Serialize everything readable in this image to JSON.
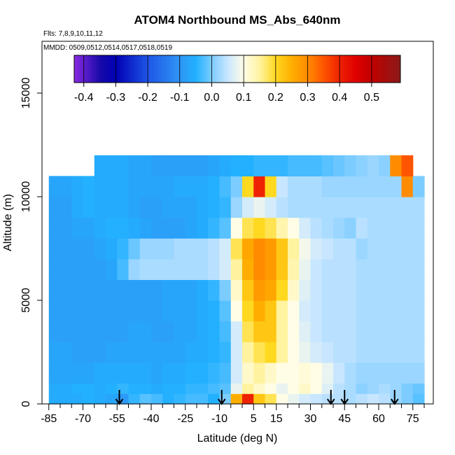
{
  "chart_data": {
    "type": "heatmap",
    "title": "ATOM4 Northbound MS_Abs_640nm",
    "flights_label": "Flts: 7,8,9,10,11,12",
    "dates_label": "MMDD: 0509,0512,0514,0517,0518,0519",
    "xlabel": "Latitude (deg N)",
    "ylabel": "Altitude (m)",
    "xlim": [
      -88,
      84
    ],
    "ylim": [
      0,
      17500
    ],
    "x_ticks": [
      -85,
      -70,
      -55,
      -40,
      -25,
      -10,
      5,
      15,
      30,
      45,
      60,
      75
    ],
    "x_minor_ticks": [
      -80,
      -75,
      -65,
      -60,
      -50,
      -45,
      -35,
      -30,
      -20,
      -15,
      -5,
      0,
      10,
      20,
      25,
      35,
      40,
      50,
      55,
      65,
      70,
      80
    ],
    "y_ticks": [
      0,
      5000,
      10000,
      15000
    ],
    "colorbar": {
      "ticks": [
        -0.4,
        -0.3,
        -0.2,
        -0.1,
        0.0,
        0.1,
        0.2,
        0.3,
        0.4,
        0.5
      ],
      "range": [
        -0.43,
        0.59
      ],
      "stops": [
        {
          "v": -0.43,
          "c": "#8a2be2"
        },
        {
          "v": -0.35,
          "c": "#1a0aa8"
        },
        {
          "v": -0.3,
          "c": "#0000b4"
        },
        {
          "v": -0.2,
          "c": "#1e55e6"
        },
        {
          "v": -0.1,
          "c": "#2f95f5"
        },
        {
          "v": -0.05,
          "c": "#22b0ff"
        },
        {
          "v": 0.0,
          "c": "#7cccff"
        },
        {
          "v": 0.05,
          "c": "#c8e6ff"
        },
        {
          "v": 0.1,
          "c": "#fffde6"
        },
        {
          "v": 0.15,
          "c": "#fff3a0"
        },
        {
          "v": 0.2,
          "c": "#ffd820"
        },
        {
          "v": 0.25,
          "c": "#ffae00"
        },
        {
          "v": 0.3,
          "c": "#ff8c00"
        },
        {
          "v": 0.35,
          "c": "#ff5500"
        },
        {
          "v": 0.4,
          "c": "#ee2200"
        },
        {
          "v": 0.45,
          "c": "#e00000"
        },
        {
          "v": 0.5,
          "c": "#c00000"
        },
        {
          "v": 0.59,
          "c": "#8b1a1a"
        }
      ]
    },
    "lat_edges": [
      -85,
      -80,
      -75,
      -70,
      -65,
      -60,
      -55,
      -50,
      -45,
      -40,
      -35,
      -30,
      -25,
      -20,
      -15,
      -10,
      -5,
      0,
      5,
      10,
      15,
      20,
      25,
      30,
      35,
      40,
      45,
      50,
      55,
      60,
      65,
      70,
      75,
      80
    ],
    "alt_edges": [
      0,
      500,
      1000,
      2000,
      3000,
      4000,
      5000,
      6000,
      7000,
      8000,
      9000,
      10000,
      11000,
      12000
    ],
    "values": [
      [
        -0.06,
        -0.06,
        -0.06,
        -0.05,
        -0.06,
        -0.07,
        -0.09,
        -0.04,
        -0.02,
        -0.03,
        -0.05,
        -0.04,
        -0.03,
        -0.03,
        -0.05,
        0.0,
        0.25,
        0.4,
        0.22,
        0.18,
        0.1,
        0.08,
        0.06,
        0.05,
        0.04,
        0.04,
        0.03,
        0.04,
        0.05,
        0.04,
        0.02,
        0.0,
        -0.02
      ],
      [
        -0.06,
        -0.06,
        -0.05,
        -0.05,
        -0.06,
        -0.05,
        -0.04,
        -0.05,
        -0.05,
        -0.06,
        -0.05,
        -0.05,
        -0.04,
        -0.04,
        -0.03,
        -0.02,
        0.08,
        0.15,
        0.12,
        0.1,
        0.08,
        0.1,
        0.12,
        0.1,
        0.07,
        0.04,
        0.03,
        0.01,
        0.02,
        0.03,
        0.02,
        0.0,
        -0.01
      ],
      [
        -0.07,
        -0.07,
        -0.07,
        -0.07,
        -0.06,
        -0.06,
        -0.06,
        -0.06,
        -0.06,
        -0.07,
        -0.06,
        -0.06,
        -0.05,
        -0.05,
        -0.04,
        -0.03,
        0.06,
        0.12,
        0.15,
        0.12,
        0.1,
        0.1,
        0.11,
        0.1,
        0.08,
        0.05,
        0.03,
        0.02,
        0.02,
        0.02,
        0.02,
        0.02,
        0.02
      ],
      [
        -0.07,
        -0.07,
        -0.08,
        -0.08,
        -0.08,
        -0.07,
        -0.07,
        -0.07,
        -0.07,
        -0.07,
        -0.07,
        -0.07,
        -0.06,
        -0.06,
        -0.05,
        -0.04,
        0.06,
        0.15,
        0.18,
        0.2,
        0.15,
        0.1,
        0.08,
        0.06,
        0.05,
        0.04,
        0.04,
        0.03,
        0.03,
        0.03,
        0.03,
        0.03,
        0.03
      ],
      [
        -0.08,
        -0.08,
        -0.08,
        -0.08,
        -0.08,
        -0.08,
        -0.08,
        -0.07,
        -0.07,
        -0.08,
        -0.08,
        -0.07,
        -0.07,
        -0.06,
        -0.05,
        -0.03,
        0.06,
        0.18,
        0.22,
        0.22,
        0.15,
        0.1,
        0.07,
        0.05,
        0.04,
        0.04,
        0.04,
        0.03,
        0.03,
        0.03,
        0.03,
        0.03,
        0.03
      ],
      [
        -0.08,
        -0.08,
        -0.08,
        -0.08,
        -0.08,
        -0.08,
        -0.08,
        -0.08,
        -0.08,
        -0.08,
        -0.07,
        -0.07,
        -0.07,
        -0.06,
        -0.05,
        -0.02,
        0.1,
        0.2,
        0.25,
        0.22,
        0.15,
        0.1,
        0.06,
        0.05,
        0.04,
        0.04,
        0.04,
        0.03,
        0.03,
        0.03,
        0.03,
        0.03,
        0.03
      ],
      [
        -0.08,
        -0.08,
        -0.08,
        -0.08,
        -0.08,
        -0.08,
        -0.08,
        -0.08,
        -0.08,
        -0.08,
        -0.07,
        -0.07,
        -0.07,
        -0.06,
        -0.04,
        0.0,
        0.12,
        0.22,
        0.28,
        0.26,
        0.2,
        0.12,
        0.07,
        0.05,
        0.04,
        0.04,
        0.04,
        0.03,
        0.03,
        0.03,
        0.03,
        0.03,
        0.03
      ],
      [
        -0.08,
        -0.08,
        -0.08,
        -0.08,
        -0.08,
        -0.07,
        -0.03,
        0.02,
        0.03,
        0.03,
        0.03,
        0.03,
        0.03,
        0.03,
        0.04,
        0.06,
        0.15,
        0.25,
        0.3,
        0.28,
        0.22,
        0.14,
        0.08,
        0.05,
        0.04,
        0.04,
        0.04,
        0.03,
        0.03,
        0.03,
        0.03,
        0.03,
        0.03
      ],
      [
        -0.08,
        -0.08,
        -0.08,
        -0.08,
        -0.07,
        -0.06,
        -0.04,
        -0.01,
        0.02,
        0.02,
        0.02,
        0.03,
        0.03,
        0.03,
        0.04,
        0.06,
        0.18,
        0.26,
        0.3,
        0.28,
        0.22,
        0.15,
        0.09,
        0.06,
        0.05,
        0.04,
        0.04,
        0.02,
        0.03,
        0.03,
        0.03,
        0.03,
        0.03
      ],
      [
        -0.08,
        -0.08,
        -0.07,
        -0.07,
        -0.06,
        -0.05,
        -0.05,
        -0.06,
        -0.07,
        -0.08,
        -0.08,
        -0.08,
        -0.07,
        -0.06,
        -0.04,
        -0.02,
        0.1,
        0.18,
        0.2,
        0.18,
        0.14,
        0.1,
        0.06,
        0.04,
        0.03,
        0.02,
        0.01,
        0.04,
        0.03,
        0.03,
        0.03,
        0.03,
        0.03
      ],
      [
        -0.08,
        -0.08,
        -0.06,
        -0.05,
        -0.06,
        -0.06,
        -0.06,
        -0.07,
        -0.08,
        -0.08,
        -0.07,
        -0.07,
        -0.07,
        -0.06,
        -0.05,
        -0.04,
        0.02,
        0.06,
        0.08,
        0.06,
        0.04,
        0.03,
        0.03,
        0.03,
        0.03,
        0.03,
        0.03,
        0.03,
        0.03,
        0.03,
        0.03,
        0.03,
        0.03
      ],
      [
        -0.07,
        -0.07,
        -0.06,
        -0.05,
        -0.06,
        -0.06,
        -0.06,
        -0.07,
        -0.07,
        -0.07,
        -0.07,
        -0.06,
        -0.06,
        -0.06,
        -0.05,
        -0.03,
        0.0,
        0.2,
        0.4,
        0.2,
        0.05,
        0.03,
        0.03,
        0.03,
        0.02,
        0.02,
        0.02,
        0.02,
        0.02,
        0.02,
        0.02,
        0.3,
        0.0
      ],
      [
        null,
        null,
        null,
        null,
        -0.06,
        -0.06,
        -0.06,
        -0.07,
        -0.07,
        -0.08,
        -0.08,
        -0.08,
        -0.08,
        -0.08,
        -0.07,
        -0.06,
        -0.05,
        -0.05,
        -0.04,
        -0.04,
        -0.04,
        -0.03,
        -0.03,
        -0.03,
        -0.02,
        -0.01,
        0.0,
        0.01,
        0.02,
        0.01,
        0.3,
        0.35,
        null
      ]
    ],
    "flight_markers_lat": [
      -54,
      -9,
      39,
      45,
      67
    ]
  }
}
